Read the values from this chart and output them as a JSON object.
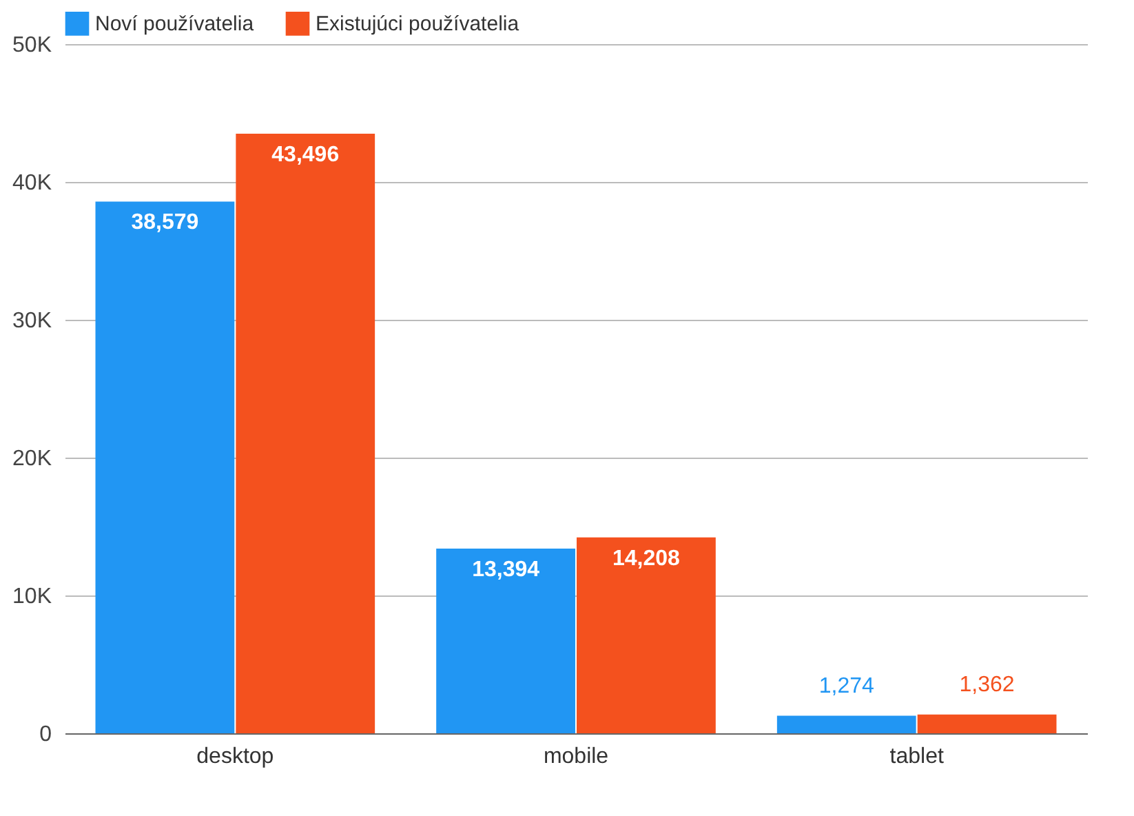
{
  "chart_data": {
    "type": "bar",
    "categories": [
      "desktop",
      "mobile",
      "tablet"
    ],
    "series": [
      {
        "name": "Noví používatelia",
        "color": "#2196f3",
        "values": [
          38579,
          13394,
          1274
        ],
        "value_labels": [
          "38,579",
          "13,394",
          "1,274"
        ]
      },
      {
        "name": "Existujúci používatelia",
        "color": "#f4511e",
        "values": [
          43496,
          14208,
          1362
        ],
        "value_labels": [
          "43,496",
          "14,208",
          "1,362"
        ]
      }
    ],
    "ylim": [
      0,
      50000
    ],
    "yticks": [
      0,
      {
        "value": 10000,
        "label": "10K"
      },
      {
        "value": 20000,
        "label": "20K"
      },
      {
        "value": 30000,
        "label": "30K"
      },
      {
        "value": 40000,
        "label": "40K"
      },
      {
        "value": 50000,
        "label": "50K"
      }
    ],
    "grid": "y",
    "legend": "top left"
  }
}
